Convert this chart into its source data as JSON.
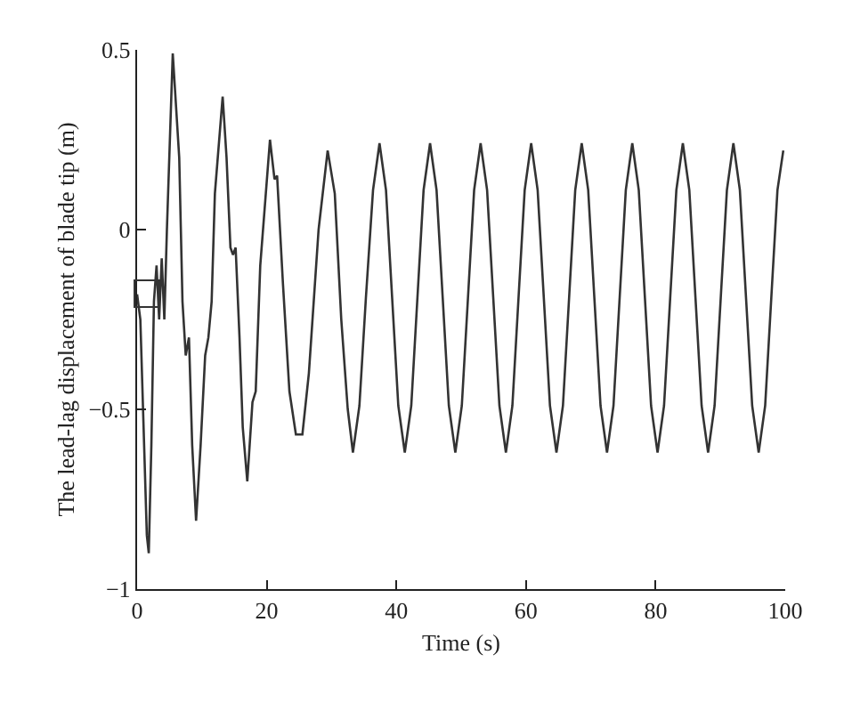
{
  "chart_data": {
    "type": "line",
    "xlabel": "Time (s)",
    "ylabel": "The lead-lag displacement of blade tip (m)",
    "xlim": [
      0,
      100
    ],
    "xticks": [
      0,
      20,
      40,
      60,
      80,
      100
    ],
    "ylim": [
      -1,
      0.5
    ],
    "yticks": [
      {
        "value": -1,
        "label": "−1"
      },
      {
        "value": -0.5,
        "label": "−0.5"
      },
      0,
      0.5
    ],
    "grid": false,
    "marker": "none",
    "line_style": "solid",
    "series": [
      {
        "color": "#333333",
        "x": [
          0,
          0.5,
          1.0,
          1.5,
          1.8,
          2.2,
          2.6,
          3.0,
          3.4,
          3.8,
          4.2,
          4.6,
          5.5,
          6.5,
          7.0,
          7.5,
          8.0,
          8.5,
          9.1,
          9.8,
          10.5,
          11.0,
          11.5,
          12.0,
          13.2,
          13.8,
          14.4,
          14.8,
          15.2,
          15.8,
          16.3,
          17.0,
          17.8,
          18.3,
          19.0,
          20.5,
          21.2,
          21.6,
          22.5,
          23.5,
          24.5,
          25.5,
          26.5,
          28.0,
          29.4,
          30.5,
          31.5,
          32.5,
          33.3,
          34.3,
          35.3,
          36.4,
          37.4,
          38.4,
          39.35,
          40.3,
          41.3,
          42.3,
          43.25,
          44.2,
          45.2,
          46.2,
          47.15,
          48.1,
          49.1,
          50.1,
          51.05,
          52.0,
          53.0,
          54.0,
          54.95,
          55.9,
          56.9,
          57.9,
          58.85,
          59.8,
          60.8,
          61.8,
          62.75,
          63.7,
          64.7,
          65.7,
          66.65,
          67.6,
          68.6,
          69.6,
          70.55,
          71.5,
          72.5,
          73.5,
          74.45,
          75.4,
          76.4,
          77.4,
          78.35,
          79.3,
          80.3,
          81.3,
          82.25,
          83.2,
          84.2,
          85.2,
          86.15,
          87.1,
          88.1,
          89.1,
          90.05,
          91.0,
          92.0,
          93.0,
          93.95,
          94.9,
          95.9,
          96.9,
          97.85,
          98.8,
          99.7
        ],
        "values": [
          -0.18,
          -0.25,
          -0.55,
          -0.85,
          -0.9,
          -0.6,
          -0.2,
          -0.1,
          -0.25,
          -0.08,
          -0.25,
          0.0,
          0.49,
          0.2,
          -0.2,
          -0.35,
          -0.3,
          -0.6,
          -0.81,
          -0.6,
          -0.35,
          -0.3,
          -0.2,
          0.1,
          0.37,
          0.2,
          -0.05,
          -0.07,
          -0.05,
          -0.3,
          -0.55,
          -0.7,
          -0.48,
          -0.45,
          -0.1,
          0.25,
          0.14,
          0.15,
          -0.15,
          -0.45,
          -0.57,
          -0.57,
          -0.4,
          0.0,
          0.22,
          0.1,
          -0.25,
          -0.5,
          -0.62,
          -0.49,
          -0.19,
          0.11,
          0.24,
          0.11,
          -0.19,
          -0.49,
          -0.62,
          -0.49,
          -0.19,
          0.11,
          0.24,
          0.11,
          -0.19,
          -0.49,
          -0.62,
          -0.49,
          -0.19,
          0.11,
          0.24,
          0.11,
          -0.19,
          -0.49,
          -0.62,
          -0.49,
          -0.19,
          0.11,
          0.24,
          0.11,
          -0.19,
          -0.49,
          -0.62,
          -0.49,
          -0.19,
          0.11,
          0.24,
          0.11,
          -0.19,
          -0.49,
          -0.62,
          -0.49,
          -0.19,
          0.11,
          0.24,
          0.11,
          -0.19,
          -0.49,
          -0.62,
          -0.49,
          -0.19,
          0.11,
          0.24,
          0.11,
          -0.19,
          -0.49,
          -0.62,
          -0.49,
          -0.19,
          0.11,
          0.24,
          0.11,
          -0.19,
          -0.49,
          -0.62,
          -0.49,
          -0.19,
          0.11,
          0.22
        ]
      }
    ]
  }
}
